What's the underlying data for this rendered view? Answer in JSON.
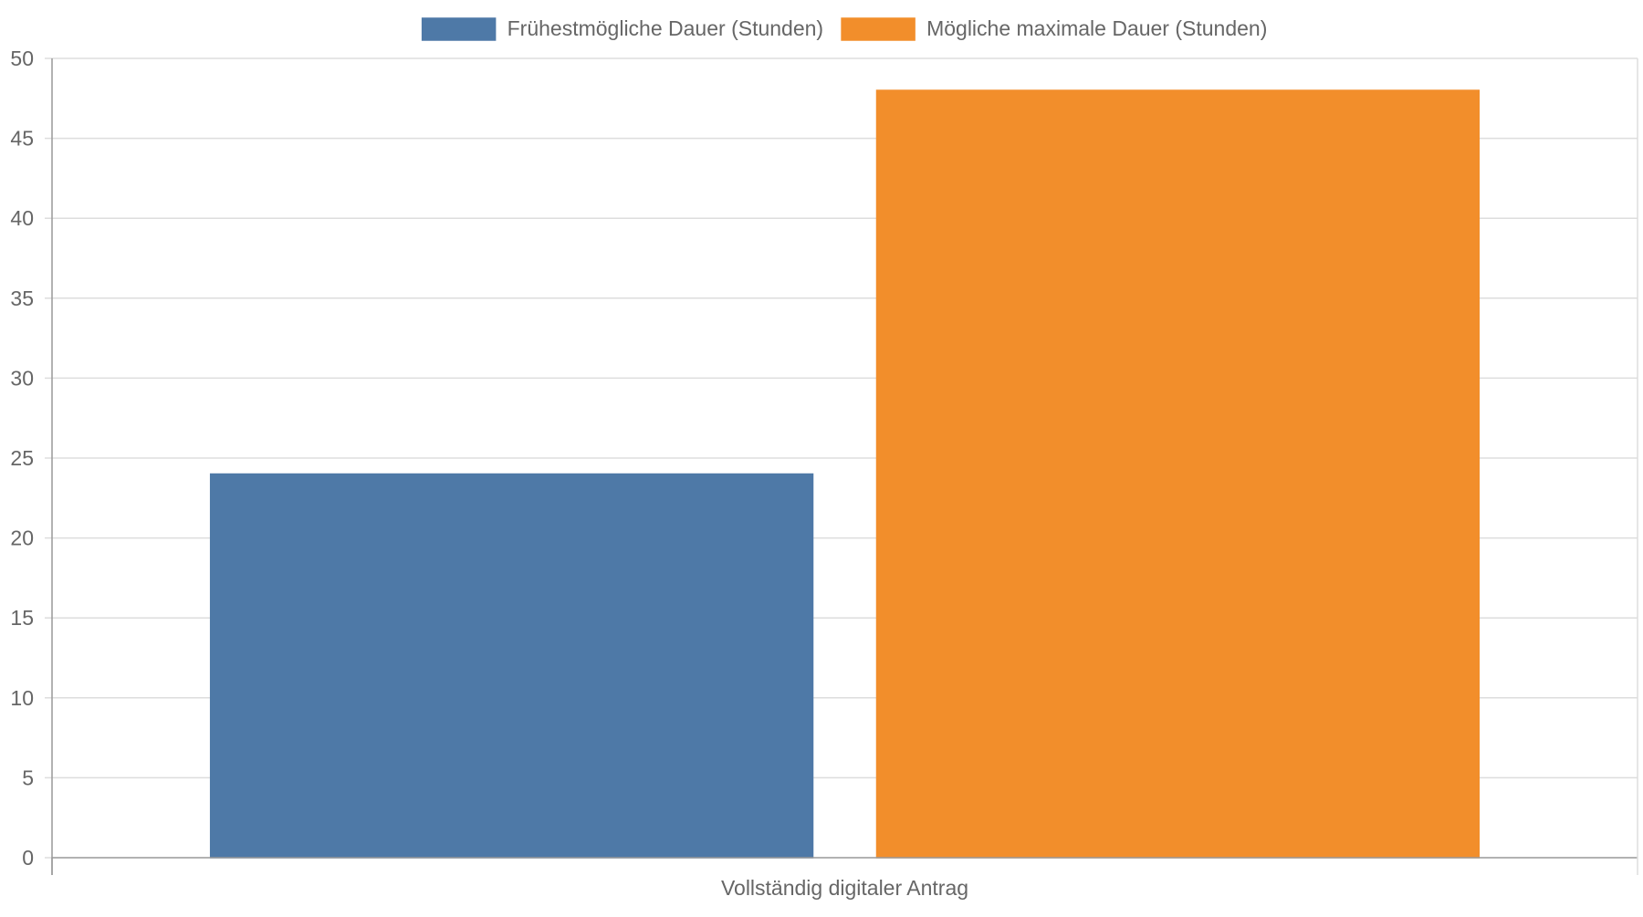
{
  "chart_data": {
    "type": "bar",
    "categories": [
      "Vollständig digitaler Antrag"
    ],
    "series": [
      {
        "name": "Frühestmögliche Dauer (Stunden)",
        "values": [
          24
        ],
        "color": "#4e79a7"
      },
      {
        "name": "Mögliche maximale Dauer (Stunden)",
        "values": [
          48
        ],
        "color": "#f28e2b"
      }
    ],
    "ylim": [
      0,
      50
    ],
    "yticks": [
      0,
      5,
      10,
      15,
      20,
      25,
      30,
      35,
      40,
      45,
      50
    ],
    "grid": true,
    "legend_position": "top-center"
  },
  "colors": {
    "axis": "#999999",
    "grid": "#dddddd",
    "text": "#666666"
  }
}
